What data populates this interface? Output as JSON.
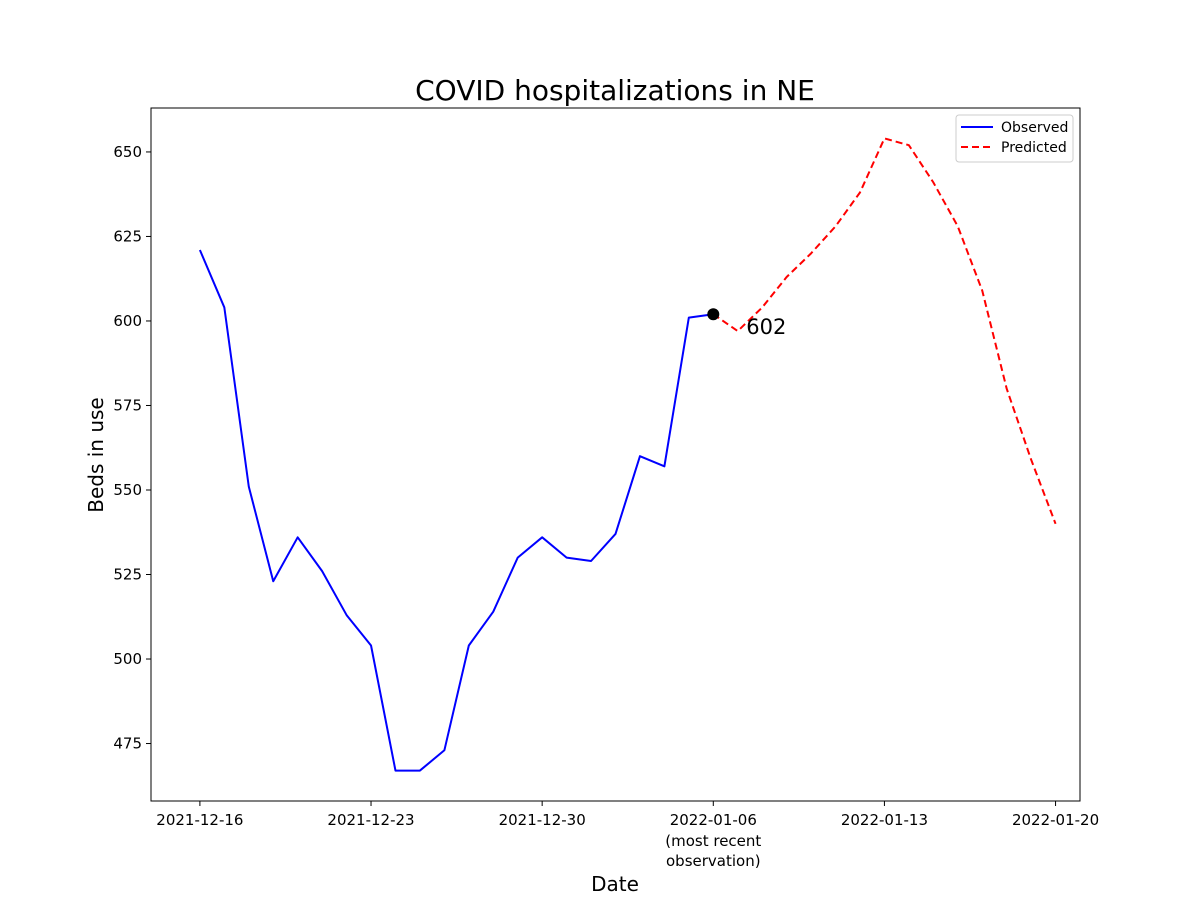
{
  "chart_data": {
    "type": "line",
    "title": "COVID hospitalizations in NE",
    "xlabel": "Date",
    "ylabel": "Beds in use",
    "xlim": [
      "2021-12-14",
      "2022-01-21"
    ],
    "ylim": [
      458,
      663
    ],
    "x_ticks": [
      {
        "date": "2021-12-16",
        "label": "2021-12-16"
      },
      {
        "date": "2021-12-23",
        "label": "2021-12-23"
      },
      {
        "date": "2021-12-30",
        "label": "2021-12-30"
      },
      {
        "date": "2022-01-06",
        "label": "2022-01-06",
        "sublabel": [
          "(most recent",
          "observation)"
        ]
      },
      {
        "date": "2022-01-13",
        "label": "2022-01-13"
      },
      {
        "date": "2022-01-20",
        "label": "2022-01-20"
      }
    ],
    "y_ticks": [
      475,
      500,
      525,
      550,
      575,
      600,
      625,
      650
    ],
    "grid": false,
    "legend_position": "top-right",
    "series": [
      {
        "name": "Observed",
        "color": "#0000ff",
        "style": "solid",
        "points": [
          [
            "2021-12-16",
            621
          ],
          [
            "2021-12-17",
            604
          ],
          [
            "2021-12-18",
            551
          ],
          [
            "2021-12-19",
            523
          ],
          [
            "2021-12-20",
            536
          ],
          [
            "2021-12-21",
            526
          ],
          [
            "2021-12-22",
            513
          ],
          [
            "2021-12-23",
            504
          ],
          [
            "2021-12-24",
            467
          ],
          [
            "2021-12-25",
            467
          ],
          [
            "2021-12-26",
            473
          ],
          [
            "2021-12-27",
            504
          ],
          [
            "2021-12-28",
            514
          ],
          [
            "2021-12-29",
            530
          ],
          [
            "2021-12-30",
            536
          ],
          [
            "2021-12-31",
            530
          ],
          [
            "2022-01-01",
            529
          ],
          [
            "2022-01-02",
            537
          ],
          [
            "2022-01-03",
            560
          ],
          [
            "2022-01-04",
            557
          ],
          [
            "2022-01-05",
            601
          ],
          [
            "2022-01-06",
            602
          ]
        ]
      },
      {
        "name": "Predicted",
        "color": "#ff0000",
        "style": "dashed",
        "points": [
          [
            "2022-01-06",
            602
          ],
          [
            "2022-01-07",
            597
          ],
          [
            "2022-01-08",
            604
          ],
          [
            "2022-01-09",
            613
          ],
          [
            "2022-01-10",
            620
          ],
          [
            "2022-01-11",
            628
          ],
          [
            "2022-01-12",
            638
          ],
          [
            "2022-01-13",
            654
          ],
          [
            "2022-01-14",
            652
          ],
          [
            "2022-01-15",
            641
          ],
          [
            "2022-01-16",
            628
          ],
          [
            "2022-01-17",
            609
          ],
          [
            "2022-01-18",
            580
          ],
          [
            "2022-01-19",
            559
          ],
          [
            "2022-01-20",
            540
          ]
        ]
      }
    ],
    "annotation": {
      "date": "2022-01-06",
      "value": 602,
      "label": "602",
      "marker_color": "#000000"
    }
  }
}
